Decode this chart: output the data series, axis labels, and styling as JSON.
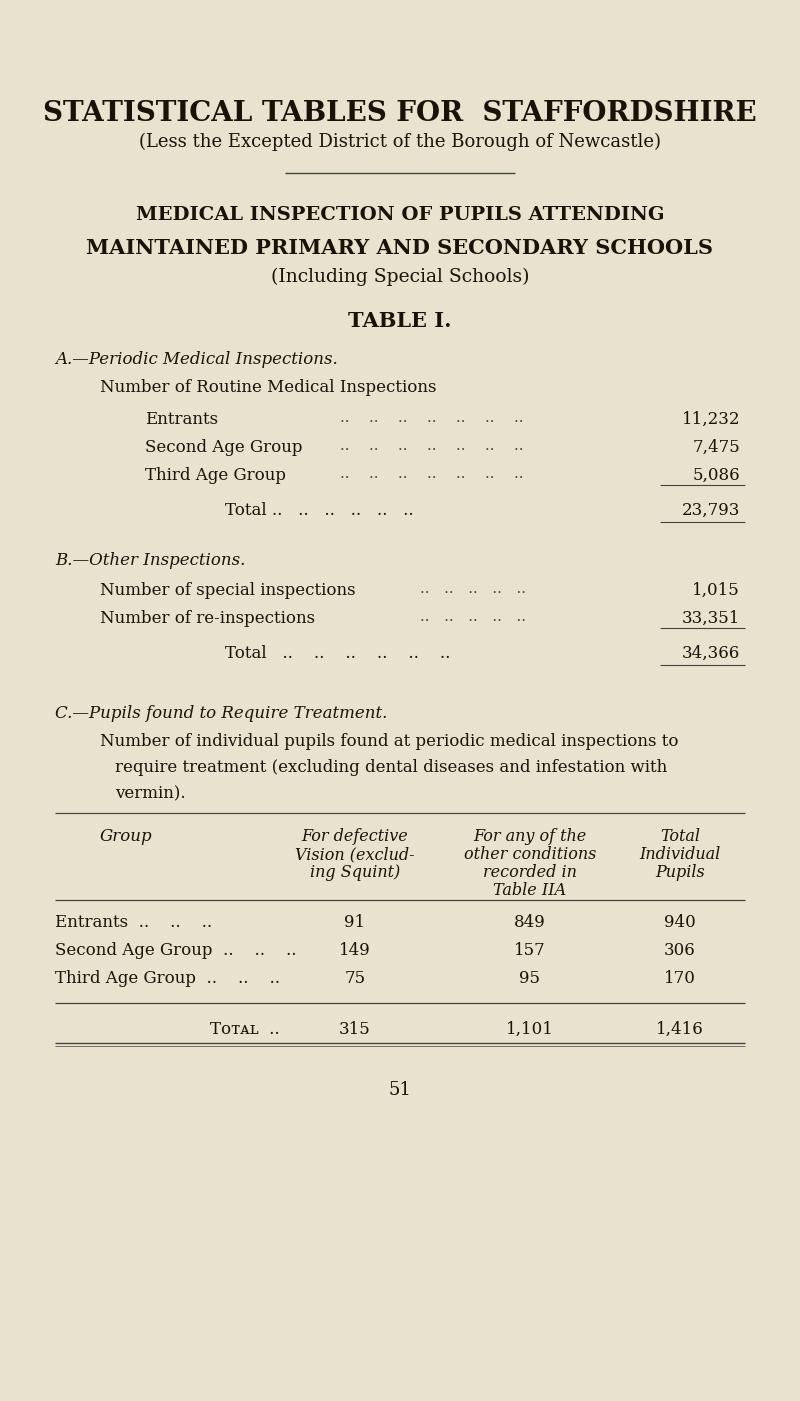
{
  "bg_color": "#e8e2ce",
  "text_color": "#1a1208",
  "title1": "STATISTICAL TABLES FOR  STAFFORDSHIRE",
  "title2": "(Less the Excepted District of the Borough of Newcastle)",
  "section_title1": "MEDICAL INSPECTION OF PUPILS ATTENDING",
  "section_title2": "MAINTAINED PRIMARY AND SECONDARY SCHOOLS",
  "section_title3": "(Including Special Schools)",
  "table_title": "TABLE I.",
  "sectionA_heading": "A.—Periodic Medical Inspections.",
  "sectionA_subheading": "Number of Routine Medical Inspections",
  "sectionA_rows": [
    [
      "Entrants",
      "11,232"
    ],
    [
      "Second Age Group",
      "7,475"
    ],
    [
      "Third Age Group",
      "5,086"
    ]
  ],
  "sectionA_total_label": "Total ..",
  "sectionA_total_value": "23,793",
  "sectionB_heading": "B.—Other Inspections.",
  "sectionB_rows": [
    [
      "Number of special inspections",
      "1,015"
    ],
    [
      "Number of re-inspections",
      "33,351"
    ]
  ],
  "sectionB_total_label": "Total",
  "sectionB_total_value": "34,366",
  "sectionC_heading": "C.—Pupils found to Require Treatment.",
  "sectionC_desc1": "Number of individual pupils found at periodic medical inspections to",
  "sectionC_desc2": "require treatment (excluding dental diseases and infestation with",
  "sectionC_desc3": "vermin).",
  "table_col1": "Group",
  "table_col2_lines": [
    "For defective",
    "Vision (exclud-",
    "ing Squint)"
  ],
  "table_col3_lines": [
    "For any of the",
    "other conditions",
    "recorded in",
    "Table IIA"
  ],
  "table_col4_lines": [
    "Total",
    "Individual",
    "Pupils"
  ],
  "table_data_rows": [
    [
      "Entrants",
      "91",
      "849",
      "940"
    ],
    [
      "Second Age Group",
      "149",
      "157",
      "306"
    ],
    [
      "Third Age Group",
      "75",
      "95",
      "170"
    ]
  ],
  "table_total_row": [
    "Total",
    "315",
    "1,101",
    "1,416"
  ],
  "page_number": "51"
}
